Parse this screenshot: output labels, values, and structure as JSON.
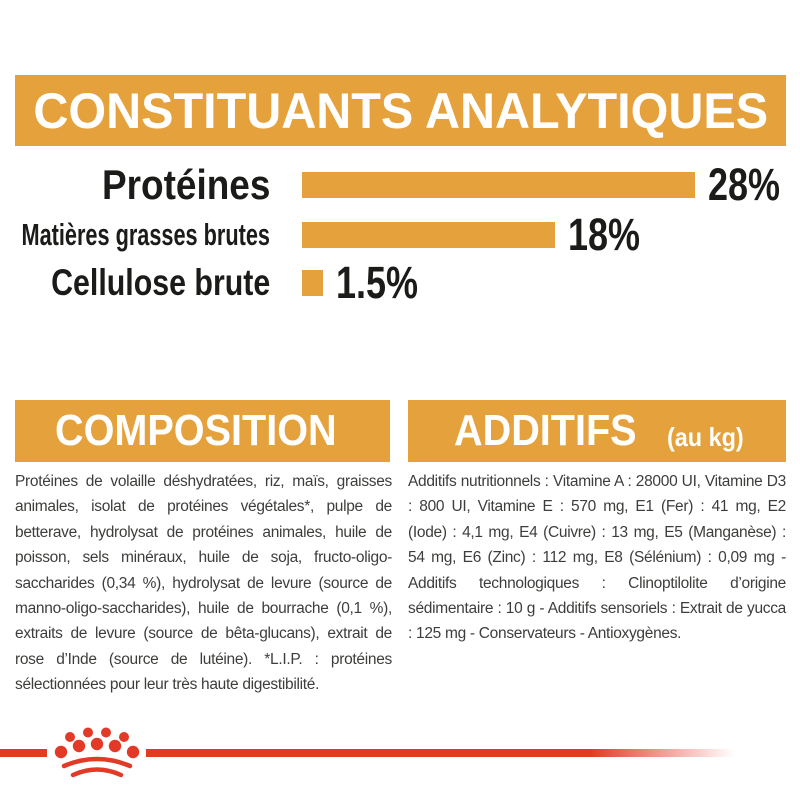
{
  "colors": {
    "accent_orange": "#E5A23C",
    "brand_red": "#E23A27",
    "heading_text": "#1b1b19",
    "body_text": "#3d3d3b",
    "banner_text": "#ffffff"
  },
  "header": {
    "title": "CONSTITUANTS ANALYTIQUES"
  },
  "chart_data": {
    "type": "bar",
    "orientation": "horizontal",
    "title": "CONSTITUANTS ANALYTIQUES",
    "categories": [
      "Protéines",
      "Matières grasses brutes",
      "Cellulose brute"
    ],
    "values": [
      28,
      18,
      1.5
    ],
    "value_labels": [
      "28%",
      "18%",
      "1.5%"
    ],
    "xlim": [
      0,
      28
    ],
    "bar_color": "#E5A23C",
    "grid": "off",
    "legend": "none"
  },
  "composition": {
    "title": "COMPOSITION",
    "body": "Protéines de volaille déshydratées, riz, maïs, graisses animales, isolat de protéines végétales*, pulpe de betterave, hydrolysat de protéines animales, huile de poisson, sels minéraux, huile de soja, fructo-oligo-saccharides (0,34 %), hydrolysat de levure (source de manno-oligo-saccharides), huile de bourrache (0,1 %), extraits de levure (source de bêta-glucans), extrait de rose d’Inde (source de lutéine). *L.I.P. : protéines sélectionnées pour leur très haute digestibilité."
  },
  "additifs": {
    "title": "ADDITIFS",
    "title_suffix": "(au kg)",
    "body": "Additifs nutritionnels : Vitamine A : 28000 UI, Vitamine D3 : 800 UI, Vitamine E : 570 mg, E1 (Fer) : 41 mg, E2 (Iode) : 4,1 mg, E4 (Cuivre) : 13 mg, E5 (Manganèse) : 54 mg, E6 (Zinc) : 112 mg, E8 (Sélénium) : 0,09 mg - Additifs technologiques : Clinoptilolite d’origine sédimentaire : 10 g - Additifs sensoriels : Extrait de yucca : 125 mg - Conservateurs - Antioxygènes."
  },
  "footer": {
    "logo": "royal-canin-crown"
  }
}
